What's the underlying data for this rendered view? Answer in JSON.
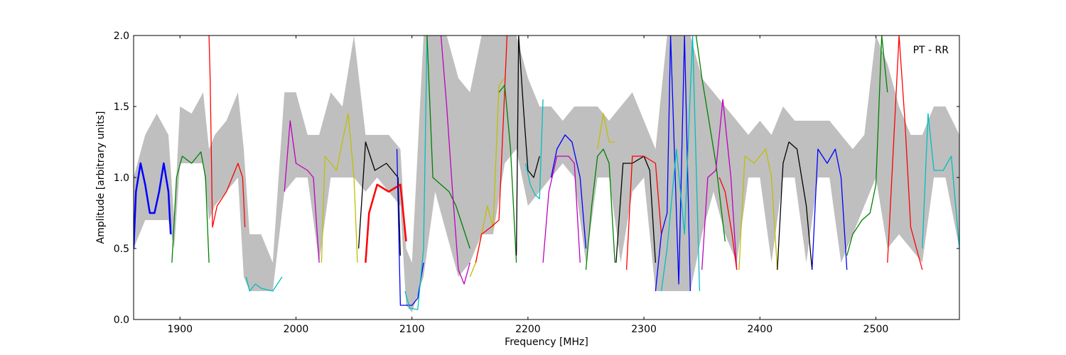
{
  "chart_data": {
    "type": "line",
    "title": "",
    "annotation": "PT - RR",
    "xlabel": "Frequency [MHz]",
    "ylabel": "Amplitude [arbitrary units]",
    "xlim": [
      1860,
      2572
    ],
    "ylim": [
      0.0,
      2.0
    ],
    "xticks": [
      1900,
      2000,
      2100,
      2200,
      2300,
      2400,
      2500
    ],
    "yticks": [
      0.0,
      0.5,
      1.0,
      1.5,
      2.0
    ],
    "xtick_labels": [
      "1900",
      "2000",
      "2100",
      "2200",
      "2300",
      "2400",
      "2500"
    ],
    "ytick_labels": [
      "0.0",
      "0.5",
      "1.0",
      "1.5",
      "2.0"
    ],
    "grid": false,
    "envelope": {
      "color": "#bfbfbf",
      "x": [
        1860,
        1870,
        1880,
        1890,
        1895,
        1900,
        1910,
        1920,
        1925,
        1930,
        1940,
        1950,
        1955,
        1960,
        1970,
        1980,
        1990,
        2000,
        2010,
        2020,
        2030,
        2040,
        2050,
        2060,
        2070,
        2080,
        2090,
        2095,
        2100,
        2110,
        2120,
        2130,
        2140,
        2150,
        2160,
        2170,
        2180,
        2190,
        2200,
        2210,
        2220,
        2230,
        2240,
        2250,
        2260,
        2270,
        2280,
        2290,
        2300,
        2310,
        2320,
        2330,
        2340,
        2350,
        2360,
        2370,
        2380,
        2390,
        2400,
        2410,
        2420,
        2430,
        2440,
        2450,
        2460,
        2470,
        2480,
        2490,
        2500,
        2510,
        2520,
        2530,
        2540,
        2550,
        2560,
        2572
      ],
      "upper": [
        1.0,
        1.3,
        1.45,
        1.3,
        0.7,
        1.5,
        1.45,
        1.6,
        1.2,
        1.3,
        1.4,
        1.6,
        1.2,
        0.6,
        0.6,
        0.4,
        1.6,
        1.6,
        1.3,
        1.3,
        1.6,
        1.5,
        2.0,
        1.3,
        1.3,
        1.3,
        1.2,
        0.5,
        0.4,
        2.0,
        2.0,
        2.0,
        1.7,
        1.6,
        2.0,
        2.0,
        2.0,
        2.0,
        1.7,
        1.5,
        1.5,
        1.4,
        1.5,
        1.5,
        1.5,
        1.4,
        1.5,
        1.6,
        1.4,
        1.2,
        2.0,
        2.0,
        2.0,
        1.7,
        1.6,
        1.5,
        1.4,
        1.3,
        1.4,
        1.3,
        1.5,
        1.4,
        1.4,
        1.4,
        1.4,
        1.3,
        1.2,
        1.3,
        2.0,
        1.8,
        1.5,
        1.3,
        1.3,
        1.5,
        1.5,
        1.3
      ],
      "lower": [
        0.5,
        0.7,
        0.7,
        0.7,
        0.5,
        1.1,
        1.1,
        1.1,
        0.7,
        0.8,
        0.9,
        1.0,
        0.3,
        0.2,
        0.2,
        0.2,
        0.9,
        1.0,
        1.0,
        0.4,
        1.0,
        1.0,
        1.0,
        0.9,
        1.0,
        0.9,
        0.8,
        0.1,
        0.05,
        0.3,
        0.9,
        0.6,
        0.3,
        0.4,
        0.6,
        0.6,
        1.1,
        1.2,
        0.8,
        0.9,
        1.0,
        1.1,
        1.0,
        0.4,
        1.0,
        1.0,
        0.4,
        0.9,
        1.0,
        0.2,
        0.2,
        0.2,
        0.2,
        0.6,
        0.9,
        0.6,
        0.4,
        1.0,
        1.0,
        0.4,
        1.0,
        1.0,
        0.4,
        1.0,
        1.0,
        0.4,
        0.6,
        0.8,
        1.0,
        0.5,
        0.6,
        0.5,
        0.4,
        1.0,
        1.0,
        0.5
      ]
    },
    "series": [
      {
        "color": "#0000ff",
        "x": [
          1860,
          1862,
          1866,
          1870,
          1874,
          1878,
          1882,
          1886,
          1890,
          1892
        ],
        "y": [
          0.5,
          0.9,
          1.1,
          0.95,
          0.75,
          0.75,
          0.9,
          1.1,
          0.9,
          0.6
        ],
        "lw": 2.5
      },
      {
        "color": "#008000",
        "x": [
          1893,
          1897,
          1902,
          1910,
          1918,
          1922,
          1925
        ],
        "y": [
          0.4,
          1.0,
          1.15,
          1.1,
          1.18,
          1.0,
          0.4
        ]
      },
      {
        "color": "#ff0000",
        "x": [
          1925,
          1926,
          1928,
          1932,
          1940,
          1950,
          1954,
          1956
        ],
        "y": [
          2.0,
          1.7,
          0.65,
          0.8,
          0.9,
          1.1,
          1.0,
          0.65
        ]
      },
      {
        "color": "#00bfbf",
        "x": [
          1957,
          1960,
          1965,
          1970,
          1980,
          1988
        ],
        "y": [
          0.3,
          0.2,
          0.25,
          0.22,
          0.2,
          0.3
        ]
      },
      {
        "color": "#bf00bf",
        "x": [
          1990,
          1995,
          2000,
          2010,
          2015,
          2020
        ],
        "y": [
          0.9,
          1.4,
          1.1,
          1.05,
          1.0,
          0.4
        ]
      },
      {
        "color": "#bfbf00",
        "x": [
          2022,
          2025,
          2035,
          2045,
          2050,
          2053
        ],
        "y": [
          0.4,
          1.15,
          1.05,
          1.45,
          1.0,
          0.4
        ]
      },
      {
        "color": "#000000",
        "x": [
          2054,
          2060,
          2068,
          2078,
          2088,
          2090
        ],
        "y": [
          0.5,
          1.25,
          1.05,
          1.1,
          1.0,
          0.45
        ]
      },
      {
        "color": "#ff0000",
        "x": [
          2060,
          2063,
          2070,
          2080,
          2090,
          2095
        ],
        "y": [
          0.4,
          0.75,
          0.95,
          0.9,
          0.95,
          0.55
        ],
        "lw": 2.5
      },
      {
        "color": "#0000ff",
        "x": [
          2087,
          2090,
          2095,
          2100,
          2105,
          2110
        ],
        "y": [
          1.2,
          0.1,
          0.1,
          0.1,
          0.15,
          0.4
        ]
      },
      {
        "color": "#00bfbf",
        "x": [
          2094,
          2098,
          2105,
          2110,
          2113
        ],
        "y": [
          0.2,
          0.08,
          0.07,
          0.5,
          2.0
        ]
      },
      {
        "color": "#008000",
        "x": [
          2113,
          2118,
          2125,
          2132,
          2138,
          2150
        ],
        "y": [
          2.0,
          1.0,
          0.95,
          0.9,
          0.8,
          0.5
        ]
      },
      {
        "color": "#bf00bf",
        "x": [
          2125,
          2130,
          2135,
          2140,
          2145,
          2150
        ],
        "y": [
          2.0,
          1.5,
          0.9,
          0.35,
          0.25,
          0.4
        ]
      },
      {
        "color": "#bfbf00",
        "x": [
          2150,
          2155,
          2165,
          2170,
          2175,
          2180
        ],
        "y": [
          0.3,
          0.4,
          0.8,
          0.65,
          1.65,
          1.7
        ]
      },
      {
        "color": "#ff0000",
        "x": [
          2155,
          2160,
          2168,
          2175,
          2182
        ],
        "y": [
          0.4,
          0.6,
          0.65,
          0.7,
          2.0
        ]
      },
      {
        "color": "#008000",
        "x": [
          2175,
          2180,
          2185,
          2190
        ],
        "y": [
          1.6,
          1.65,
          1.2,
          0.4
        ]
      },
      {
        "color": "#000000",
        "x": [
          2190,
          2192,
          2196,
          2200,
          2205,
          2210
        ],
        "y": [
          0.45,
          2.0,
          1.5,
          1.05,
          1.0,
          1.15
        ]
      },
      {
        "color": "#00bfbf",
        "x": [
          2198,
          2202,
          2206,
          2210,
          2213
        ],
        "y": [
          1.1,
          0.95,
          0.88,
          0.85,
          1.55
        ]
      },
      {
        "color": "#bf00bf",
        "x": [
          2213,
          2218,
          2225,
          2235,
          2240,
          2245
        ],
        "y": [
          0.4,
          0.9,
          1.15,
          1.15,
          1.1,
          0.4
        ]
      },
      {
        "color": "#0000ff",
        "x": [
          2220,
          2225,
          2232,
          2238,
          2245,
          2250
        ],
        "y": [
          1.0,
          1.2,
          1.3,
          1.25,
          1.0,
          0.5
        ]
      },
      {
        "color": "#008000",
        "x": [
          2250,
          2255,
          2260,
          2265,
          2270,
          2275
        ],
        "y": [
          0.35,
          0.8,
          1.15,
          1.2,
          1.1,
          0.4
        ]
      },
      {
        "color": "#bfbf00",
        "x": [
          2260,
          2265,
          2270,
          2275
        ],
        "y": [
          1.2,
          1.45,
          1.25,
          1.25
        ]
      },
      {
        "color": "#000000",
        "x": [
          2276,
          2282,
          2290,
          2300,
          2305,
          2310
        ],
        "y": [
          0.4,
          1.1,
          1.1,
          1.15,
          1.05,
          0.4
        ]
      },
      {
        "color": "#ff0000",
        "x": [
          2285,
          2290,
          2300,
          2310,
          2315
        ],
        "y": [
          0.35,
          1.15,
          1.15,
          1.1,
          0.6
        ]
      },
      {
        "color": "#0000ff",
        "x": [
          2310,
          2315,
          2320,
          2323,
          2330,
          2335,
          2340
        ],
        "y": [
          0.2,
          0.6,
          0.75,
          2.0,
          0.25,
          2.0,
          0.2
        ]
      },
      {
        "color": "#00bfbf",
        "x": [
          2315,
          2320,
          2328,
          2335,
          2342,
          2348
        ],
        "y": [
          0.2,
          0.5,
          1.2,
          0.6,
          2.0,
          0.2
        ]
      },
      {
        "color": "#008000",
        "x": [
          2345,
          2350,
          2355,
          2362,
          2370
        ],
        "y": [
          2.0,
          1.7,
          1.45,
          1.1,
          0.55
        ]
      },
      {
        "color": "#bf00bf",
        "x": [
          2350,
          2355,
          2362,
          2368,
          2375,
          2380
        ],
        "y": [
          0.35,
          1.0,
          1.05,
          1.55,
          1.0,
          0.35
        ]
      },
      {
        "color": "#ff0000",
        "x": [
          2365,
          2370,
          2376,
          2380
        ],
        "y": [
          1.0,
          0.9,
          0.6,
          0.35
        ]
      },
      {
        "color": "#bfbf00",
        "x": [
          2382,
          2387,
          2395,
          2405,
          2410,
          2415
        ],
        "y": [
          0.35,
          1.15,
          1.1,
          1.2,
          1.0,
          0.35
        ]
      },
      {
        "color": "#000000",
        "x": [
          2415,
          2420,
          2425,
          2432,
          2440,
          2445
        ],
        "y": [
          0.35,
          1.1,
          1.25,
          1.2,
          0.8,
          0.35
        ]
      },
      {
        "color": "#0000ff",
        "x": [
          2445,
          2450,
          2458,
          2465,
          2470,
          2475
        ],
        "y": [
          0.35,
          1.2,
          1.1,
          1.2,
          1.0,
          0.35
        ]
      },
      {
        "color": "#008000",
        "x": [
          2475,
          2480,
          2488,
          2495,
          2500,
          2505,
          2510
        ],
        "y": [
          0.45,
          0.6,
          0.7,
          0.75,
          0.95,
          2.0,
          1.6
        ]
      },
      {
        "color": "#ff0000",
        "x": [
          2510,
          2515,
          2520,
          2525,
          2530,
          2535,
          2540
        ],
        "y": [
          0.4,
          1.2,
          2.0,
          1.4,
          0.65,
          0.5,
          0.35
        ]
      },
      {
        "color": "#00bfbf",
        "x": [
          2540,
          2545,
          2550,
          2558,
          2565,
          2572
        ],
        "y": [
          0.5,
          1.45,
          1.05,
          1.05,
          1.15,
          0.5
        ]
      }
    ]
  }
}
